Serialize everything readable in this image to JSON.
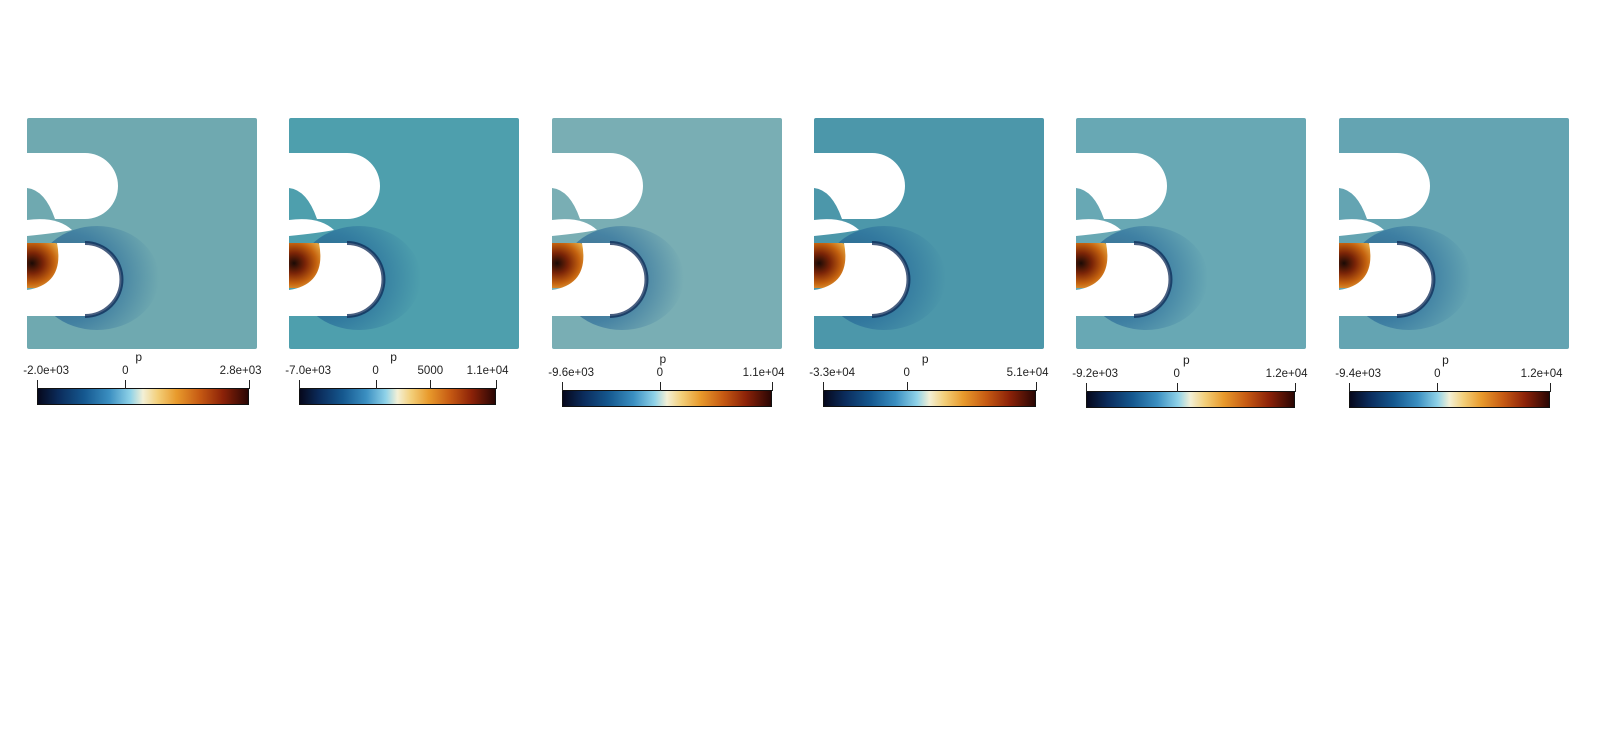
{
  "colors": {
    "background": "#ffffff",
    "colormap": [
      "#06081c",
      "#0b2c5c",
      "#15588f",
      "#3b8fc1",
      "#8fd2e8",
      "#f3f0d6",
      "#f3cf7a",
      "#e89a2c",
      "#c65a13",
      "#8c2208",
      "#2a0604"
    ]
  },
  "panels": [
    {
      "field_color": "#6fa9b0",
      "scalar": "p",
      "tick_labels": [
        "-2.0e+03",
        "0",
        "2.8e+03"
      ],
      "tick_values": [
        -2000,
        0,
        2800
      ],
      "range": [
        -2000,
        2800
      ]
    },
    {
      "field_color": "#4e9fad",
      "scalar": "p",
      "tick_labels": [
        "-7.0e+03",
        "0",
        "5000",
        "1.1e+04"
      ],
      "tick_values": [
        -7000,
        0,
        5000,
        11000
      ],
      "range": [
        -7000,
        11000
      ]
    },
    {
      "field_color": "#79aeb4",
      "scalar": "p",
      "tick_labels": [
        "-9.6e+03",
        "0",
        "1.1e+04"
      ],
      "tick_values": [
        -9600,
        0,
        11000
      ],
      "range": [
        -9600,
        11000
      ]
    },
    {
      "field_color": "#4c97aa",
      "scalar": "p",
      "tick_labels": [
        "-3.3e+04",
        "0",
        "5.1e+04"
      ],
      "tick_values": [
        -33000,
        0,
        51000
      ],
      "range": [
        -33000,
        51000
      ]
    },
    {
      "field_color": "#68a8b4",
      "scalar": "p",
      "tick_labels": [
        "-9.2e+03",
        "0",
        "1.2e+04"
      ],
      "tick_values": [
        -9200,
        0,
        12000
      ],
      "range": [
        -9200,
        12000
      ]
    },
    {
      "field_color": "#64a4b2",
      "scalar": "p",
      "tick_labels": [
        "-9.4e+03",
        "0",
        "1.2e+04"
      ],
      "tick_values": [
        -9400,
        0,
        12000
      ],
      "range": [
        -9400,
        12000
      ]
    }
  ]
}
